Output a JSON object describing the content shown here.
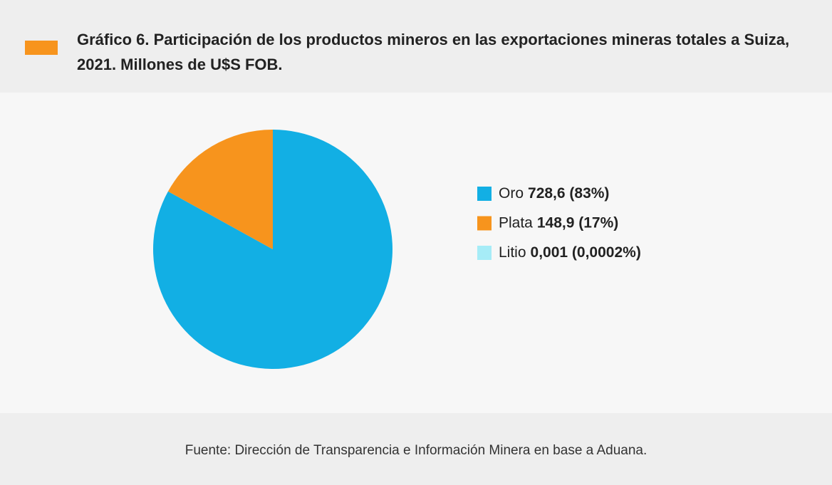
{
  "chart_data": {
    "type": "pie",
    "title": "Gráfico 6. Participación de los productos mineros en las exportaciones mineras totales a Suiza, 2021. Millones de U$S FOB.",
    "categories": [
      "Oro",
      "Plata",
      "Litio"
    ],
    "values": [
      728.6,
      148.9,
      0.001
    ],
    "value_labels": [
      "728,6 (83%)",
      "148,9 (17%)",
      "0,001 (0,0002%)"
    ],
    "colors": [
      "#12afe4",
      "#f7941d",
      "#a6ecf7"
    ],
    "legend": "right",
    "source": "Fuente: Dirección de Transparencia e Información Minera en base a Aduana."
  }
}
